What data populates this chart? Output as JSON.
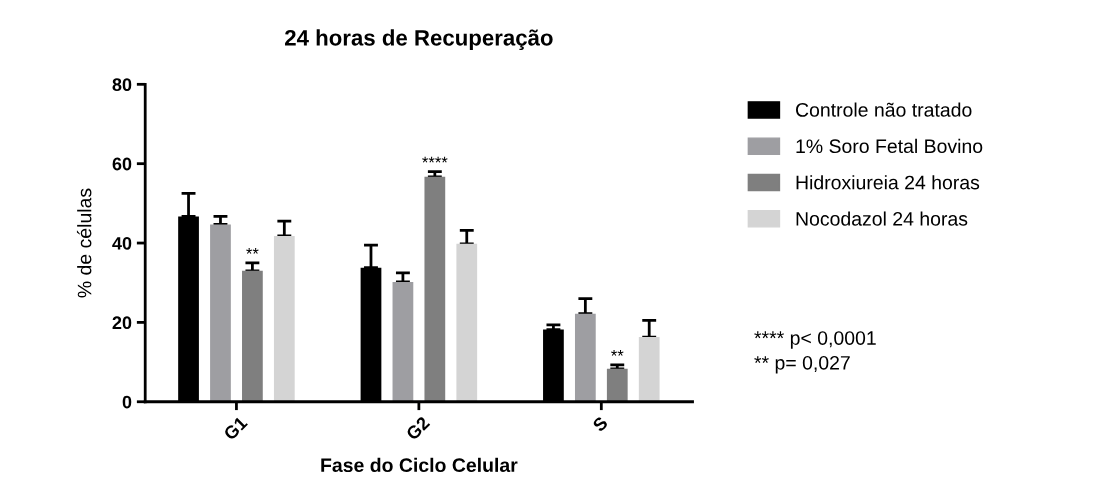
{
  "chart_data": {
    "type": "bar",
    "title": "24 horas de Recuperação",
    "xlabel": "Fase do Ciclo Celular",
    "ylabel": "% de células",
    "categories": [
      "G1",
      "G2",
      "S"
    ],
    "series": [
      {
        "name": "Controle não tratado",
        "color": "#000000",
        "values": [
          46.7,
          33.8,
          18.2
        ],
        "errors": [
          [
            46.7,
            52.5
          ],
          [
            33.8,
            39.5
          ],
          [
            18.2,
            19.4
          ]
        ]
      },
      {
        "name": "1% Soro Fetal Bovino",
        "color": "#9e9ea2",
        "values": [
          44.7,
          30.2,
          22.2
        ],
        "errors": [
          [
            44.7,
            46.7
          ],
          [
            30.2,
            32.5
          ],
          [
            22.2,
            26.0
          ]
        ]
      },
      {
        "name": "Hidroxiureia 24 horas",
        "color": "#7f7f7f",
        "values": [
          33.0,
          56.7,
          8.3
        ],
        "errors": [
          [
            33.0,
            35.0
          ],
          [
            56.7,
            58.0
          ],
          [
            8.3,
            9.3
          ]
        ]
      },
      {
        "name": "Nocodazol 24 horas",
        "color": "#d4d4d4",
        "values": [
          41.8,
          39.8,
          16.3
        ],
        "errors": [
          [
            41.8,
            45.5
          ],
          [
            39.8,
            43.2
          ],
          [
            16.3,
            20.5
          ]
        ]
      }
    ],
    "ylim": [
      0,
      80
    ],
    "yticks": [
      0,
      20,
      40,
      60,
      80
    ],
    "grid": false,
    "legend": "right",
    "annotations": [
      "**",
      "****",
      "**",
      "**** p< 0,0001",
      "** p= 0,027"
    ]
  }
}
